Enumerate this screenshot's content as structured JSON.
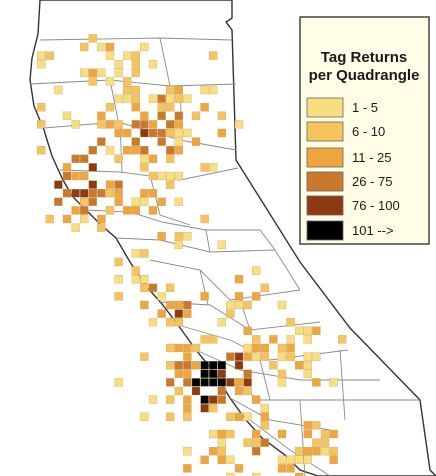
{
  "legend": {
    "title_line1": "Tag Returns",
    "title_line2": "per Quadrangle",
    "classes": [
      {
        "label": "1 - 5",
        "color": "#f8de7e"
      },
      {
        "label": "6 - 10",
        "color": "#f6c45c"
      },
      {
        "label": "11 - 25",
        "color": "#efa63e"
      },
      {
        "label": "26 - 75",
        "color": "#c9782c"
      },
      {
        "label": "76 - 100",
        "color": "#8e3a12"
      },
      {
        "label": "101 -->",
        "color": "#000000"
      }
    ]
  },
  "colors": {
    "land": "#ffffff",
    "county_line": "#8a8a8a",
    "state_outline": "#333333",
    "legend_bg": "#fffde6",
    "legend_border": "#444444",
    "grid_line": "#b8a070"
  }
}
